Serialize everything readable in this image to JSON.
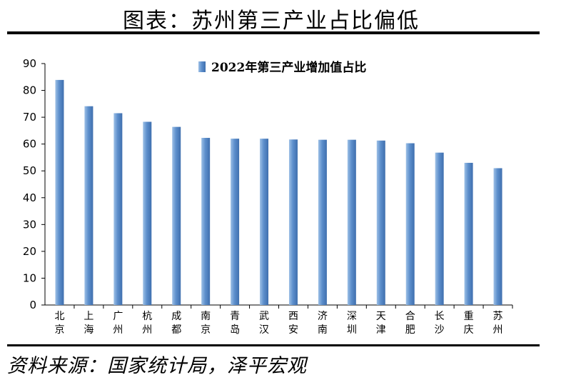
{
  "header": {
    "title": "图表：苏州第三产业占比偏低"
  },
  "footer": {
    "source": "资料来源：国家统计局，泽平宏观"
  },
  "colors": {
    "bar_light": "#9dc0e6",
    "bar_mid": "#5d8fcc",
    "bar_dark": "#3f6fae"
  },
  "chart_data": {
    "type": "bar",
    "title": "",
    "xlabel": "",
    "ylabel": "",
    "ylim": [
      0,
      90
    ],
    "yticks": [
      0,
      10,
      20,
      30,
      40,
      50,
      60,
      70,
      80,
      90
    ],
    "grid": false,
    "legend_position": "top-center",
    "categories": [
      "北京",
      "上海",
      "广州",
      "杭州",
      "成都",
      "南京",
      "青岛",
      "武汉",
      "西安",
      "济南",
      "深圳",
      "天津",
      "合肥",
      "长沙",
      "重庆",
      "苏州"
    ],
    "series": [
      {
        "name": "2022年第三产业增加值占比",
        "values": [
          83.9,
          74.1,
          71.5,
          68.3,
          66.4,
          62.3,
          62.0,
          62.0,
          61.7,
          61.6,
          61.6,
          61.3,
          60.3,
          56.8,
          53.0,
          51.0
        ]
      }
    ]
  }
}
